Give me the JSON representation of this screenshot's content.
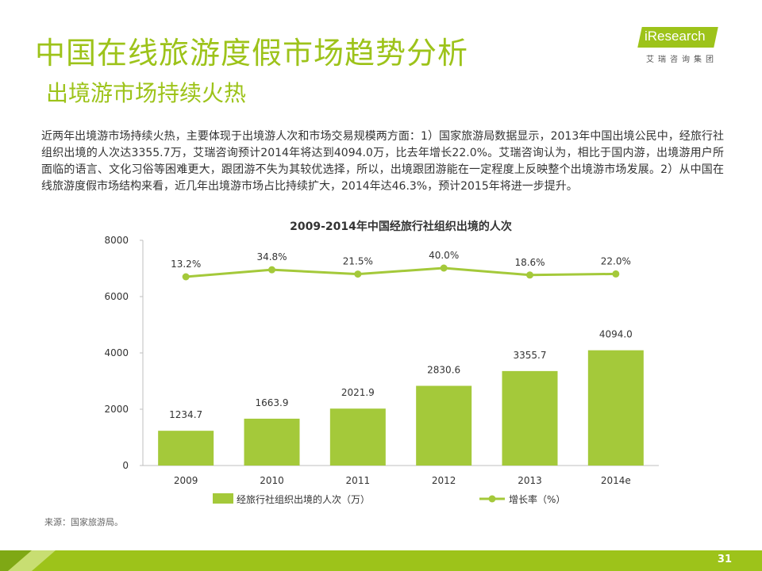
{
  "slide": {
    "title": "中国在线旅游度假市场趋势分析",
    "subtitle": "出境游市场持续火热",
    "body": "近两年出境游市场持续火热，主要体现于出境游人次和市场交易规模两方面：1）国家旅游局数据显示，2013年中国出境公民中，经旅行社组织出境的人次达3355.7万，艾瑞咨询预计2014年将达到4094.0万，比去年增长22.0%。艾瑞咨询认为，相比于国内游，出境游用户所面临的语言、文化习俗等困难更大，跟团游不失为其较优选择，所以，出境跟团游能在一定程度上反映整个出境游市场发展。2）从中国在线旅游度假市场结构来看，近几年出境游市场占比持续扩大，2014年达46.3%，预计2015年将进一步提升。",
    "source": "来源：国家旅游局。",
    "page_number": "31"
  },
  "logo": {
    "name": "iResearch",
    "cn": "艾瑞咨询集团"
  },
  "colors": {
    "accent": "#9DC31A",
    "bar": "#A4C93A",
    "line": "#A4C93A"
  },
  "chart_data": {
    "type": "bar",
    "title": "2009-2014年中国经旅行社组织出境的人次",
    "categories": [
      "2009",
      "2010",
      "2011",
      "2012",
      "2013",
      "2014e"
    ],
    "series": [
      {
        "name": "经旅行社组织出境的人次（万）",
        "type": "bar",
        "values": [
          1234.7,
          1663.9,
          2021.9,
          2830.6,
          3355.7,
          4094.0
        ],
        "labels": [
          "1234.7",
          "1663.9",
          "2021.9",
          "2830.6",
          "3355.7",
          "4094.0"
        ]
      },
      {
        "name": "增长率（%）",
        "type": "line",
        "values": [
          13.2,
          34.8,
          21.5,
          40.0,
          18.6,
          22.0
        ],
        "labels": [
          "13.2%",
          "34.8%",
          "21.5%",
          "40.0%",
          "18.6%",
          "22.0%"
        ]
      }
    ],
    "yticks": [
      "0",
      "2000",
      "4000",
      "6000",
      "8000"
    ],
    "ylim": [
      0,
      8000
    ],
    "legend_position": "bottom",
    "grid": false
  }
}
